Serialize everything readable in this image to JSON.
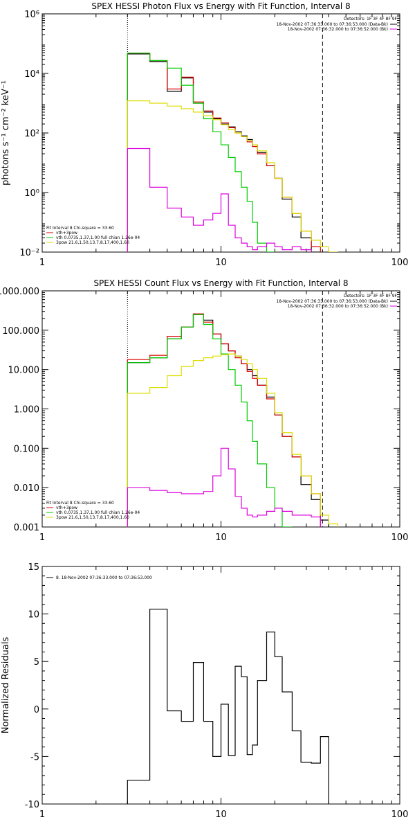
{
  "chart_data": [
    {
      "type": "line",
      "title": "SPEX HESSI Photon Flux vs Energy with Fit Function, Interval 8",
      "ylabel": "photons s⁻¹ cm⁻² keV⁻¹",
      "xlabel": "",
      "xscale": "log",
      "yscale": "log",
      "xlim": [
        1,
        100
      ],
      "ylim": [
        0.01,
        1000000
      ],
      "x_ticks": [
        1,
        10,
        100
      ],
      "x_tick_labels": [
        "1",
        "10",
        "100"
      ],
      "y_ticks": [
        0.01,
        1,
        100,
        10000,
        1000000
      ],
      "y_tick_labels": [
        "10⁻²",
        "10⁰",
        "10²",
        "10⁴",
        "10⁶"
      ],
      "vlines": [
        {
          "x": 3,
          "style": "dotted"
        },
        {
          "x": 37,
          "style": "dashed"
        }
      ],
      "legend_right": {
        "header": "Detectors: 1F 3F 4F 8F 9F",
        "entries": [
          {
            "text": "18-Nov-2002 07:36:33.000 to 07:36:53.000 (Data-Bk)",
            "color": "#000000"
          },
          {
            "text": "18-Nov-2002 07:36:32.000 to 07:36:52.000 (Bk)",
            "color": "#dd00dd"
          }
        ]
      },
      "legend_left": {
        "header": "Fit Interval  8    Chi-square = 33.60",
        "entries": [
          {
            "text": "vth+3pow",
            "color": "#dd0000"
          },
          {
            "text": "vth 0.0735,1.37,1.00  full chian 1.26e-04",
            "color": "#00cc00"
          },
          {
            "text": "3pow 21.6,1.50,13.7,8.17,400,1.60",
            "color": "#dddd00"
          }
        ]
      },
      "bin_edges": [
        3,
        4,
        5,
        6,
        7,
        8,
        9,
        10,
        11,
        12,
        13,
        14,
        15,
        16,
        18,
        20,
        22,
        25,
        28,
        32,
        36,
        40,
        45
      ],
      "series": [
        {
          "name": "Data-Bk",
          "color": "#000000",
          "values": [
            45000,
            25000,
            2500,
            7000,
            1000,
            500,
            300,
            200,
            160,
            110,
            80,
            60,
            40,
            22,
            8,
            3,
            0.6,
            0.15,
            0.03,
            0.01,
            null,
            null
          ]
        },
        {
          "name": "vth+3pow",
          "color": "#dd0000",
          "values": [
            48000,
            27000,
            3000,
            7500,
            1100,
            550,
            320,
            220,
            150,
            100,
            75,
            50,
            35,
            20,
            8,
            3,
            0.7,
            0.2,
            0.05,
            0.015,
            null,
            null
          ]
        },
        {
          "name": "vth",
          "color": "#00cc00",
          "values": [
            48000,
            27000,
            15000,
            4000,
            1000,
            300,
            110,
            40,
            15,
            5,
            1.5,
            0.5,
            0.1,
            0.02,
            0.005,
            null,
            null,
            null,
            null,
            null,
            null,
            null
          ]
        },
        {
          "name": "3pow",
          "color": "#dddd00",
          "values": [
            1200,
            1000,
            800,
            650,
            500,
            380,
            280,
            190,
            130,
            100,
            75,
            55,
            40,
            25,
            10,
            3,
            0.7,
            0.2,
            0.05,
            0.025,
            0.015,
            0.01
          ]
        },
        {
          "name": "Bk",
          "color": "#dd00dd",
          "values": [
            30,
            1.5,
            0.3,
            0.15,
            0.08,
            0.12,
            0.2,
            0.9,
            0.08,
            0.03,
            0.02,
            0.015,
            0.012,
            0.015,
            0.02,
            0.015,
            0.012,
            0.015,
            0.012,
            null,
            null,
            null
          ]
        }
      ]
    },
    {
      "type": "line",
      "title": "SPEX HESSI Count Flux vs Energy with Fit Function, Interval 8",
      "xlabel": "",
      "ylabel": "",
      "xscale": "log",
      "yscale": "log",
      "xlim": [
        1,
        100
      ],
      "ylim": [
        0.001,
        1000
      ],
      "x_ticks": [
        1,
        10,
        100
      ],
      "x_tick_labels": [
        "1",
        "10",
        "100"
      ],
      "y_ticks": [
        0.001,
        0.01,
        0.1,
        1,
        10,
        100,
        1000
      ],
      "y_tick_labels": [
        "0.001",
        "0.010",
        "0.100",
        "1.000",
        "10.000",
        "100.000",
        "1000.000"
      ],
      "vlines": [
        {
          "x": 3,
          "style": "dotted"
        },
        {
          "x": 37,
          "style": "dashed"
        }
      ],
      "legend_right": {
        "header": "Detectors: 1F 3F 4F 8F 9F",
        "entries": [
          {
            "text": "18-Nov-2002 07:36:33.000 to 07:36:53.000 (Data-Bk)",
            "color": "#000000"
          },
          {
            "text": "18-Nov-2002 07:36:32.000 to 07:36:52.000 (Bk)",
            "color": "#dd00dd"
          }
        ]
      },
      "legend_left": {
        "header": "Fit Interval  8    Chi-square = 33.60",
        "entries": [
          {
            "text": "vth+3pow",
            "color": "#dd0000"
          },
          {
            "text": "vth 0.0735,1.37,1.00  full chian 1.26e-04",
            "color": "#00cc00"
          },
          {
            "text": "3pow 21.6,1.50,13.7,8.17,400,1.60",
            "color": "#dddd00"
          }
        ]
      },
      "bin_edges": [
        3,
        4,
        5,
        6,
        7,
        8,
        9,
        10,
        11,
        12,
        13,
        14,
        15,
        16,
        18,
        20,
        22,
        25,
        28,
        32,
        36,
        40,
        45
      ],
      "series": [
        {
          "name": "Data-Bk",
          "color": "#000000",
          "values": [
            15,
            20,
            60,
            120,
            250,
            180,
            80,
            45,
            30,
            22,
            14,
            10,
            7,
            4,
            2,
            0.7,
            0.2,
            0.06,
            0.012,
            0.005,
            0.0015,
            null
          ]
        },
        {
          "name": "vth+3pow",
          "color": "#dd0000",
          "values": [
            18,
            23,
            70,
            120,
            260,
            160,
            80,
            45,
            30,
            20,
            14,
            9,
            6,
            4,
            1.8,
            0.7,
            0.2,
            0.06,
            0.02,
            0.007,
            null,
            null
          ]
        },
        {
          "name": "vth",
          "color": "#00cc00",
          "values": [
            15,
            20,
            60,
            120,
            250,
            140,
            60,
            25,
            10,
            4,
            1.5,
            0.5,
            0.15,
            0.04,
            0.01,
            0.003,
            0.001,
            null,
            null,
            null,
            null,
            null
          ]
        },
        {
          "name": "3pow",
          "color": "#dddd00",
          "values": [
            2.5,
            3.5,
            7,
            12,
            17,
            20,
            22,
            24,
            25,
            22,
            18,
            14,
            10,
            6,
            2.5,
            0.8,
            0.25,
            0.07,
            0.02,
            0.007,
            0.002,
            0.0012
          ]
        },
        {
          "name": "Bk",
          "color": "#dd00dd",
          "values": [
            0.01,
            0.0085,
            0.0075,
            0.007,
            0.007,
            0.008,
            0.02,
            0.1,
            0.03,
            0.006,
            0.003,
            0.002,
            0.0018,
            0.002,
            0.0025,
            0.003,
            0.0025,
            0.002,
            0.002,
            0.0018,
            null,
            null
          ]
        }
      ]
    },
    {
      "type": "line",
      "title": "",
      "xlabel": "",
      "ylabel": "Normalized Residuals",
      "xscale": "log",
      "yscale": "linear",
      "xlim": [
        1,
        100
      ],
      "ylim": [
        -10,
        15
      ],
      "x_ticks": [
        1,
        10,
        100
      ],
      "x_tick_labels": [
        "1",
        "10",
        "100"
      ],
      "y_ticks": [
        -10,
        -5,
        0,
        5,
        10,
        15
      ],
      "y_tick_labels": [
        "-10",
        "-5",
        "0",
        "5",
        "10",
        "15"
      ],
      "legend_left": {
        "header": "",
        "entries": [
          {
            "text": "8. 18-Nov-2002 07:36:33.000 to 07:36:53.000",
            "color": "#000000"
          }
        ]
      },
      "bin_edges": [
        3,
        4,
        5,
        6,
        7,
        8,
        9,
        10,
        11,
        12,
        13,
        14,
        15,
        16,
        18,
        20,
        22,
        25,
        28,
        32,
        36,
        40
      ],
      "series": [
        {
          "name": "",
          "color": "#000000",
          "values": [
            -7.5,
            10.5,
            -0.2,
            -1.3,
            4.9,
            -1.3,
            -5,
            0.5,
            -4.9,
            4.5,
            3.4,
            -4.8,
            -3.8,
            3,
            8.1,
            5.5,
            1.8,
            -2.3,
            -5.6,
            -5.7,
            -2.9
          ]
        }
      ]
    }
  ]
}
